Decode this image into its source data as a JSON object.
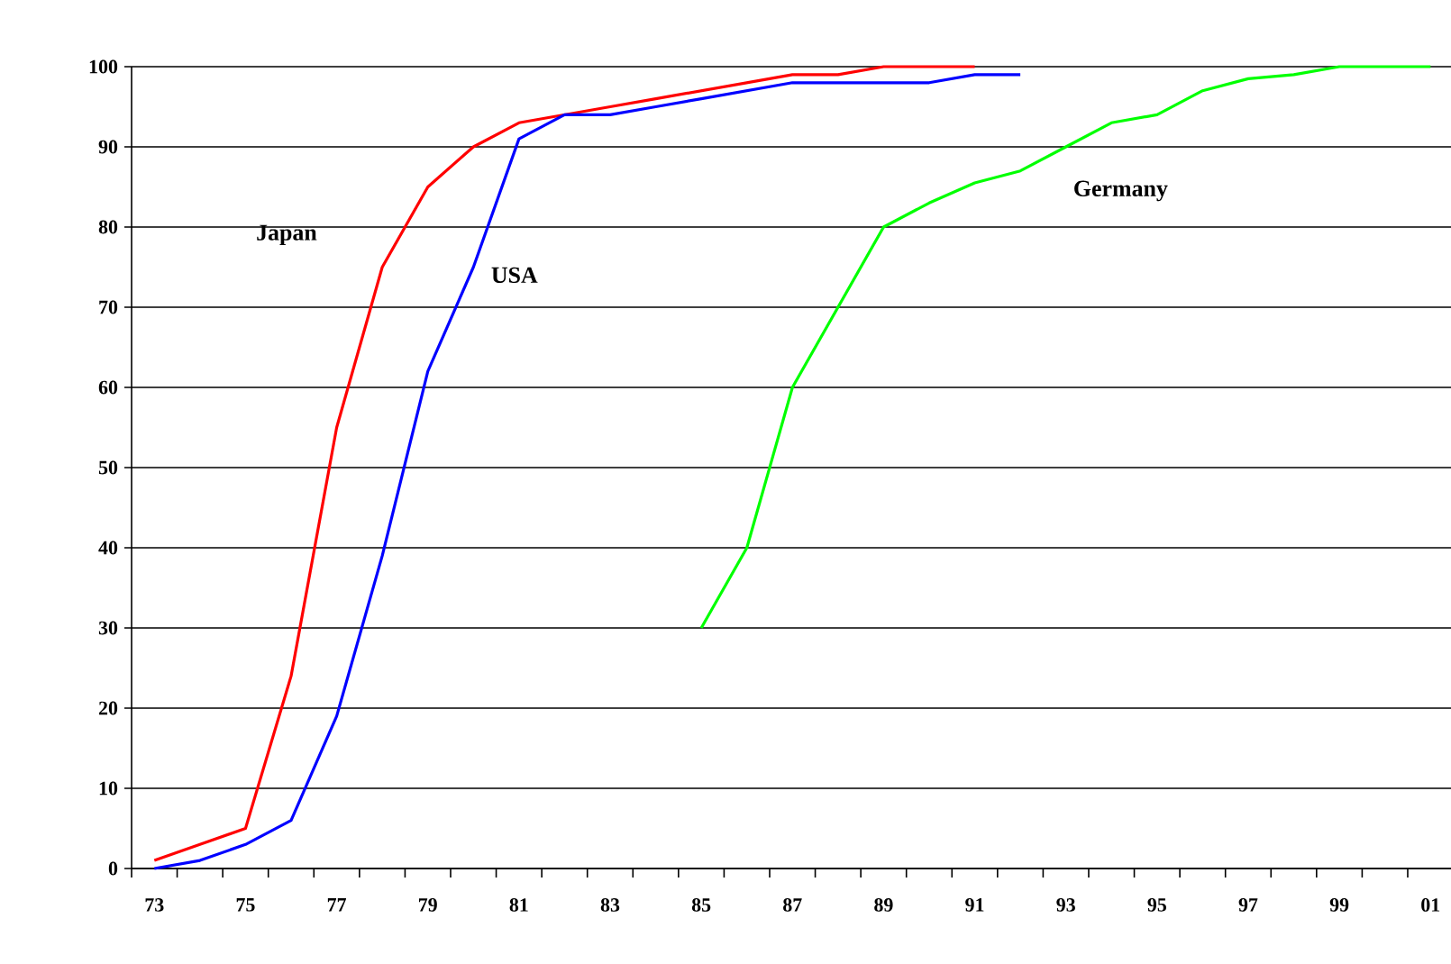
{
  "chart_data": {
    "type": "line",
    "categories": [
      "73",
      null,
      "75",
      null,
      "77",
      null,
      "79",
      null,
      "81",
      null,
      "83",
      null,
      "85",
      null,
      "87",
      null,
      "89",
      null,
      "91",
      null,
      "93",
      null,
      "95",
      null,
      "97",
      null,
      "99",
      null,
      "01"
    ],
    "series": [
      {
        "name": "Japan",
        "color": "#ff0000",
        "values": [
          1,
          3,
          5,
          24,
          55,
          75,
          85,
          90,
          93,
          94,
          95,
          96,
          97,
          98,
          99,
          99,
          100,
          100,
          100,
          null,
          null,
          null,
          null,
          null,
          null,
          null,
          null,
          null,
          null
        ]
      },
      {
        "name": "USA",
        "color": "#0000ff",
        "values": [
          0,
          1,
          3,
          6,
          19,
          39,
          62,
          75,
          91,
          94,
          94,
          95,
          96,
          97,
          98,
          98,
          98,
          98,
          99,
          99,
          null,
          null,
          null,
          null,
          null,
          null,
          null,
          null,
          null
        ]
      },
      {
        "name": "Germany",
        "color": "#00ff00",
        "values": [
          null,
          null,
          null,
          null,
          null,
          null,
          null,
          null,
          null,
          null,
          null,
          null,
          30,
          40,
          60,
          70,
          80,
          83,
          85.5,
          87,
          90,
          93,
          94,
          97,
          98.5,
          99,
          100,
          100,
          100
        ]
      }
    ],
    "ylim": [
      0,
      100
    ],
    "yticks": [
      0,
      10,
      20,
      30,
      40,
      50,
      60,
      70,
      80,
      90,
      100
    ],
    "grid": "y",
    "marker": "none",
    "line_style": "solid"
  }
}
